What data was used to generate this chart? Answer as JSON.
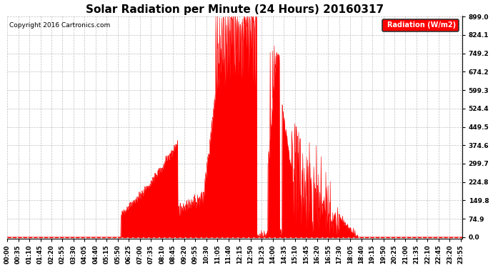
{
  "title": "Solar Radiation per Minute (24 Hours) 20160317",
  "copyright_text": "Copyright 2016 Cartronics.com",
  "ylabel": "Radiation (W/m2)",
  "background_color": "#ffffff",
  "plot_bg_color": "#ffffff",
  "line_color": "#ff0000",
  "fill_color": "#ff0000",
  "grid_color": "#b0b0b0",
  "yticks": [
    0.0,
    74.9,
    149.8,
    224.8,
    299.7,
    374.6,
    449.5,
    524.4,
    599.3,
    674.2,
    749.2,
    824.1,
    899.0
  ],
  "ymax": 899.0,
  "ymin": 0.0,
  "total_minutes": 1440,
  "title_fontsize": 11,
  "tick_fontsize": 6.5,
  "copyright_fontsize": 6.5,
  "legend_fontsize": 7
}
